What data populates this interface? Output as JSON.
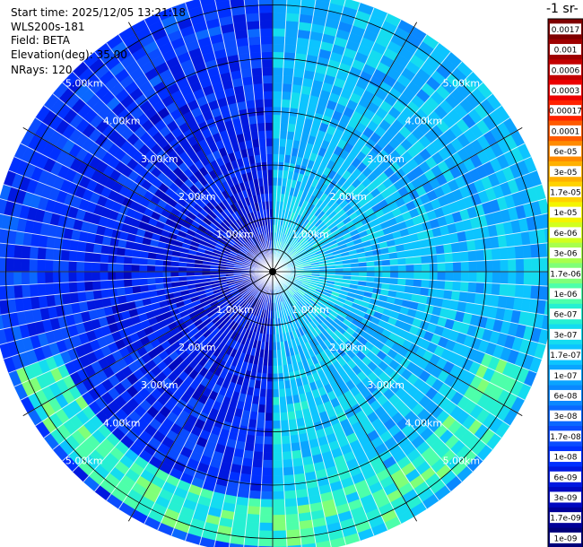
{
  "info": {
    "start_time": "Start time: 2025/12/05 13:21:18",
    "instrument": "WLS200s-181",
    "field": "Field: BETA",
    "elevation": "Elevation(deg): 35.00",
    "nrays": "NRays: 120"
  },
  "colorbar": {
    "title_fragment": "-1 sr-",
    "labels": [
      "0.0017",
      "0.001",
      "0.0006",
      "0.0003",
      "0.00017",
      "0.0001",
      "6e-05",
      "3e-05",
      "1.7e-05",
      "1e-05",
      "6e-06",
      "3e-06",
      "1.7e-06",
      "1e-06",
      "6e-07",
      "3e-07",
      "1.7e-07",
      "1e-07",
      "6e-08",
      "3e-08",
      "1.7e-08",
      "1e-08",
      "6e-09",
      "3e-09",
      "1.7e-09",
      "1e-09"
    ],
    "colors": [
      "#7f0000",
      "#9e0000",
      "#c40000",
      "#ec0000",
      "#ff2200",
      "#ff5a00",
      "#ff8a00",
      "#ffb000",
      "#ffd200",
      "#f4f400",
      "#d2ff1e",
      "#a8ff4d",
      "#80ff78",
      "#4dffaa",
      "#26f0d2",
      "#14dcf0",
      "#0cc4ff",
      "#0aa4ff",
      "#0a88ff",
      "#0a68ff",
      "#0a4cff",
      "#0030ff",
      "#0018e0",
      "#0008c0",
      "#000098",
      "#00007a"
    ]
  },
  "chart_data": {
    "type": "heatmap",
    "projection": "polar (PPI scan)",
    "field": "BETA",
    "elevation_deg": 35.0,
    "n_rays": 120,
    "range_ring_labels": [
      "1.00km",
      "2.00km",
      "3.00km",
      "4.00km",
      "5.00km"
    ],
    "range_rings_km": [
      1,
      2,
      3,
      4,
      5
    ],
    "max_range_km": 5.3,
    "colorbar_ticks": [
      0.0017,
      0.001,
      0.0006,
      0.0003,
      0.00017,
      0.0001,
      6e-05,
      3e-05,
      1.7e-05,
      1e-05,
      6e-06,
      3e-06,
      1.7e-06,
      1e-06,
      6e-07,
      3e-07,
      1.7e-07,
      1e-07,
      6e-08,
      3e-08,
      1.7e-08,
      1e-08,
      6e-09,
      3e-09,
      1.7e-09,
      1e-09
    ],
    "scale": "log",
    "colormap": "jet",
    "approx_log10_value_by_sector": [
      {
        "from_deg": 0,
        "to_deg": 150,
        "log10_beta": -6.5,
        "note": "east half: cyan"
      },
      {
        "from_deg": 150,
        "to_deg": 180,
        "log10_beta": -6.8
      },
      {
        "from_deg": 180,
        "to_deg": 360,
        "log10_beta": -8.2,
        "note": "west half: blue"
      }
    ],
    "outer_ring_band": {
      "range_km": [
        4.3,
        5.2
      ],
      "log10_beta": -6.2,
      "note": "green band in south"
    }
  }
}
